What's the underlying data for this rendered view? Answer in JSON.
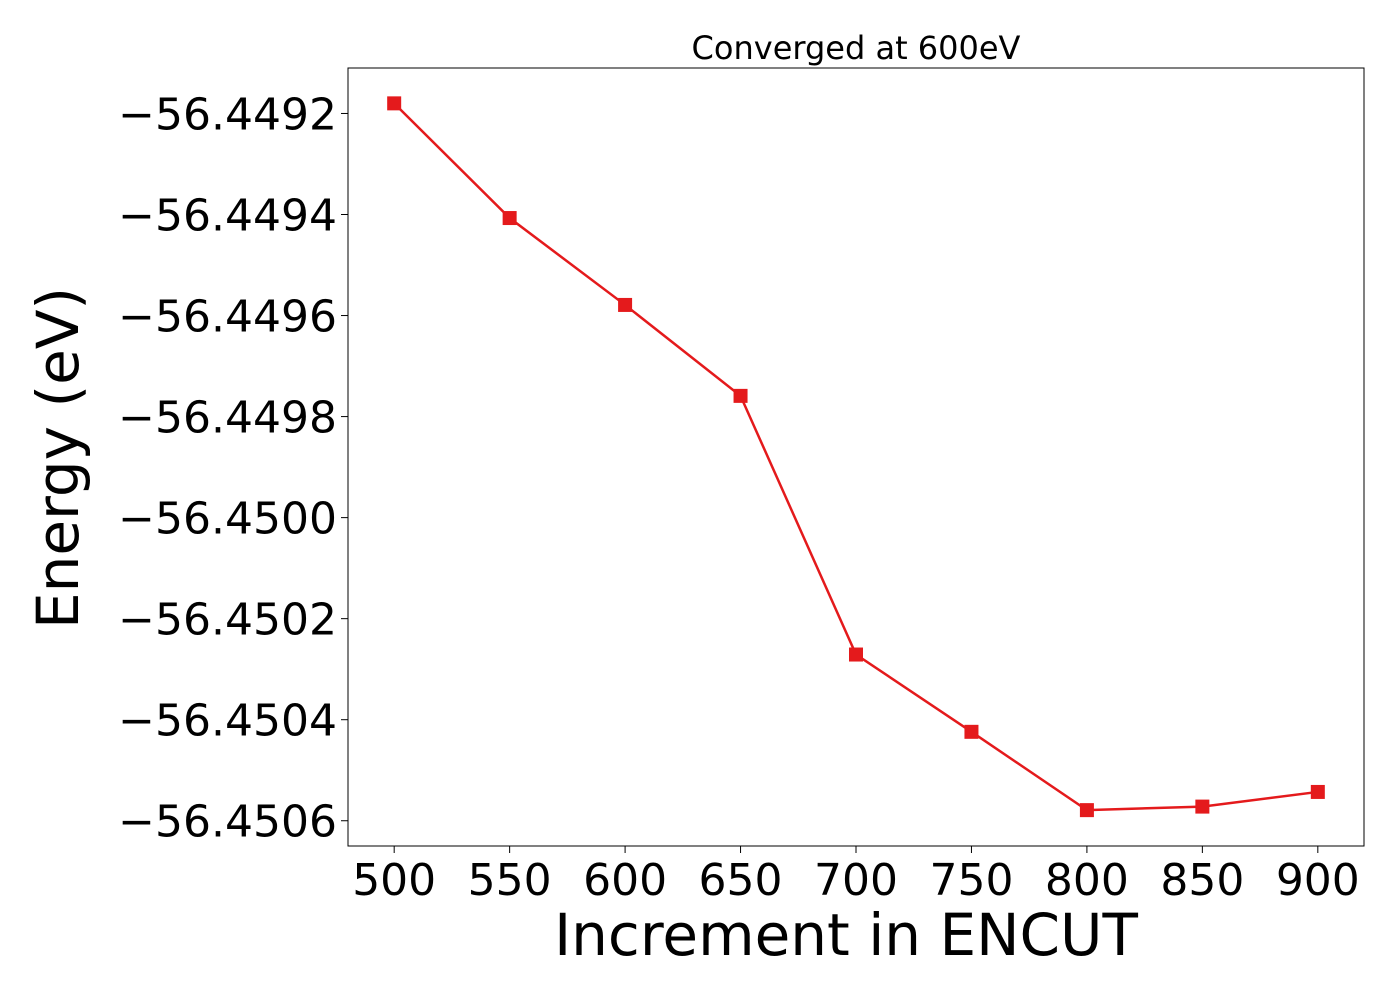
{
  "colors": {
    "series": "#e41a1c",
    "axis": "#000000",
    "background": "#ffffff"
  },
  "chart_data": {
    "type": "line",
    "title": "Converged at 600eV",
    "xlabel": "Increment in ENCUT",
    "ylabel": "Energy (eV)",
    "xlim": [
      480,
      920
    ],
    "ylim": [
      -56.45065,
      -56.44911
    ],
    "x_ticks": [
      500,
      550,
      600,
      650,
      700,
      750,
      800,
      850,
      900
    ],
    "x_tick_labels": [
      "500",
      "550",
      "600",
      "650",
      "700",
      "750",
      "800",
      "850",
      "900"
    ],
    "y_ticks": [
      -56.4492,
      -56.4494,
      -56.4496,
      -56.4498,
      -56.45,
      -56.4502,
      -56.4504,
      -56.4506
    ],
    "y_tick_labels": [
      "−56.4492",
      "−56.4494",
      "−56.4496",
      "−56.4498",
      "−56.4500",
      "−56.4502",
      "−56.4504",
      "−56.4506"
    ],
    "grid": false,
    "legend": "none",
    "marker": "square",
    "series": [
      {
        "x": [
          500,
          550,
          600,
          650,
          700,
          750,
          800,
          850,
          900
        ],
        "y": [
          -56.44918,
          -56.449407,
          -56.449579,
          -56.449759,
          -56.450271,
          -56.450424,
          -56.450579,
          -56.450572,
          -56.450543
        ]
      }
    ]
  }
}
